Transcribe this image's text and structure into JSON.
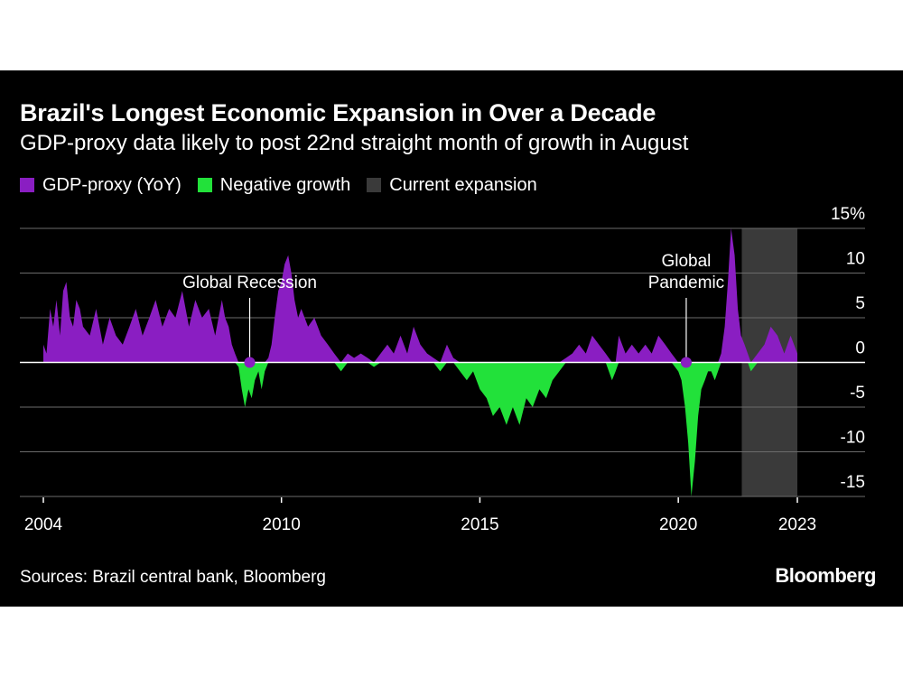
{
  "title": "Brazil's Longest Economic Expansion in Over a Decade",
  "subtitle": "GDP-proxy data likely to post 22nd straight month of growth in August",
  "legend": [
    {
      "label": "GDP-proxy (YoY)",
      "color": "#8a1ec2"
    },
    {
      "label": "Negative growth",
      "color": "#22e13a"
    },
    {
      "label": "Current expansion",
      "color": "#3a3a3a"
    }
  ],
  "source": "Sources: Brazil central bank, Bloomberg",
  "brand": "Bloomberg",
  "chart_data": {
    "type": "area",
    "title": "Brazil's Longest Economic Expansion in Over a Decade",
    "ylabel": "GDP-proxy (YoY)",
    "ylim": [
      -15,
      15
    ],
    "yticks": [
      {
        "value": 15,
        "label": "15%"
      },
      {
        "value": 10,
        "label": "10"
      },
      {
        "value": 5,
        "label": "5"
      },
      {
        "value": 0,
        "label": "0"
      },
      {
        "value": -5,
        "label": "-5"
      },
      {
        "value": -10,
        "label": "-10"
      },
      {
        "value": -15,
        "label": "-15"
      }
    ],
    "xlim": [
      2004.0,
      2023.0
    ],
    "xticks": [
      {
        "value": 2004,
        "label": "2004"
      },
      {
        "value": 2010,
        "label": "2010"
      },
      {
        "value": 2015,
        "label": "2015"
      },
      {
        "value": 2020,
        "label": "2020"
      },
      {
        "value": 2023,
        "label": "2023"
      }
    ],
    "shaded_range": {
      "label": "Current expansion",
      "start": 2021.6,
      "end": 2023.0
    },
    "annotations": [
      {
        "lines": [
          "Global Recession"
        ],
        "x": 2009.2,
        "y": 0
      },
      {
        "lines": [
          "Global",
          "Pandemic"
        ],
        "x": 2020.2,
        "y": 0
      }
    ],
    "series": [
      {
        "name": "GDP-proxy (YoY)",
        "x": [
          2004.0,
          2004.08,
          2004.17,
          2004.25,
          2004.33,
          2004.42,
          2004.5,
          2004.58,
          2004.67,
          2004.75,
          2004.83,
          2004.92,
          2005.0,
          2005.17,
          2005.33,
          2005.5,
          2005.67,
          2005.83,
          2006.0,
          2006.17,
          2006.33,
          2006.5,
          2006.67,
          2006.83,
          2007.0,
          2007.17,
          2007.33,
          2007.5,
          2007.67,
          2007.83,
          2008.0,
          2008.17,
          2008.33,
          2008.5,
          2008.58,
          2008.67,
          2008.75,
          2008.83,
          2008.92,
          2009.0,
          2009.08,
          2009.17,
          2009.25,
          2009.33,
          2009.42,
          2009.5,
          2009.58,
          2009.67,
          2009.75,
          2009.83,
          2009.92,
          2010.0,
          2010.08,
          2010.17,
          2010.25,
          2010.33,
          2010.42,
          2010.5,
          2010.67,
          2010.83,
          2011.0,
          2011.17,
          2011.33,
          2011.5,
          2011.67,
          2011.83,
          2012.0,
          2012.17,
          2012.33,
          2012.5,
          2012.67,
          2012.83,
          2013.0,
          2013.17,
          2013.33,
          2013.5,
          2013.67,
          2013.83,
          2014.0,
          2014.17,
          2014.33,
          2014.5,
          2014.67,
          2014.83,
          2015.0,
          2015.17,
          2015.33,
          2015.5,
          2015.67,
          2015.83,
          2016.0,
          2016.17,
          2016.33,
          2016.5,
          2016.67,
          2016.83,
          2017.0,
          2017.17,
          2017.33,
          2017.5,
          2017.67,
          2017.83,
          2018.0,
          2018.17,
          2018.33,
          2018.42,
          2018.5,
          2018.67,
          2018.83,
          2019.0,
          2019.17,
          2019.33,
          2019.5,
          2019.67,
          2019.83,
          2020.0,
          2020.08,
          2020.17,
          2020.25,
          2020.33,
          2020.42,
          2020.5,
          2020.58,
          2020.67,
          2020.75,
          2020.83,
          2020.92,
          2021.0,
          2021.08,
          2021.17,
          2021.25,
          2021.33,
          2021.42,
          2021.5,
          2021.58,
          2021.67,
          2021.75,
          2021.83,
          2022.0,
          2022.17,
          2022.33,
          2022.5,
          2022.67,
          2022.83,
          2023.0
        ],
        "values": [
          2,
          1,
          6,
          4,
          7,
          3,
          8,
          9,
          5,
          4,
          7,
          6,
          4,
          3,
          6,
          2,
          5,
          3,
          2,
          4,
          6,
          3,
          5,
          7,
          4,
          6,
          5,
          8,
          4,
          7,
          5,
          6,
          3,
          7,
          5,
          4,
          2,
          1,
          -0.5,
          -3,
          -5,
          -3,
          -4,
          -2,
          -1,
          -3,
          -1,
          0.5,
          2,
          5,
          8,
          9,
          11,
          12,
          10,
          7,
          5,
          6,
          4,
          5,
          3,
          2,
          1,
          -1,
          1,
          0.5,
          1,
          0.5,
          -0.5,
          1,
          2,
          1,
          3,
          1,
          4,
          2,
          1,
          0.5,
          -1,
          2,
          0.5,
          -1,
          -2,
          -1,
          -3,
          -4,
          -6,
          -5,
          -7,
          -5,
          -7,
          -4,
          -5,
          -3,
          -4,
          -2,
          -1,
          0.5,
          1,
          2,
          1,
          3,
          2,
          1,
          -2,
          -1,
          3,
          1,
          2,
          1,
          2,
          1,
          3,
          2,
          1,
          -1,
          -2,
          -5,
          -9,
          -15,
          -11,
          -6,
          -3,
          -2,
          -1,
          -1,
          -2,
          -1,
          1,
          4,
          9,
          15,
          12,
          6,
          3,
          2,
          1,
          -1,
          1,
          2,
          4,
          3,
          1,
          3,
          1
        ]
      }
    ]
  }
}
